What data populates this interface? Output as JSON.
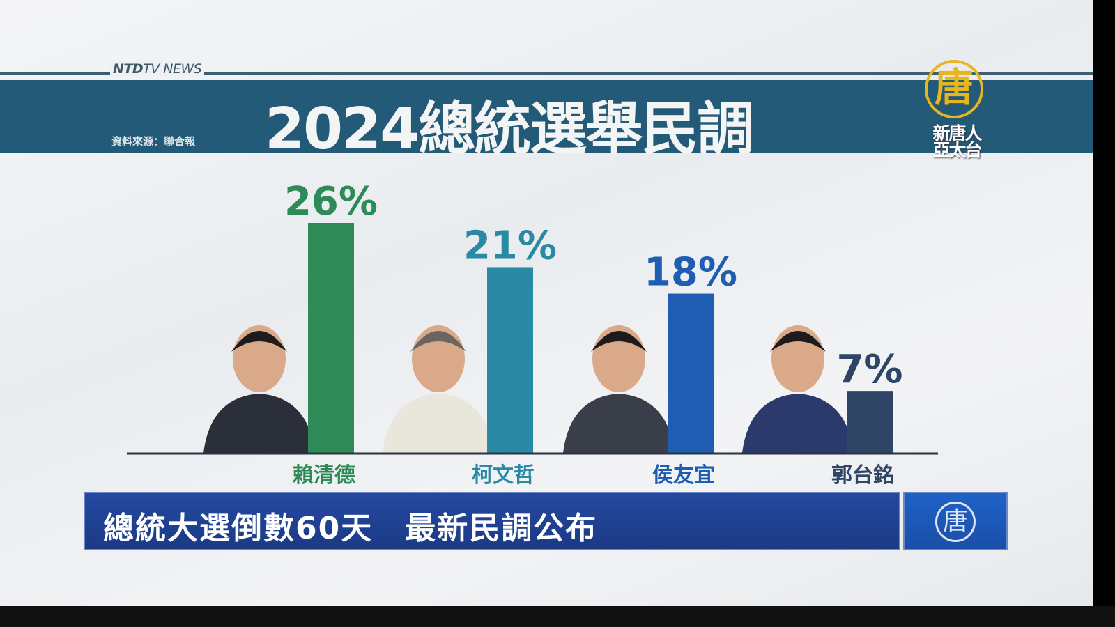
{
  "brand": {
    "bold": "NTD",
    "rest": "TV NEWS"
  },
  "header": {
    "title": "2024總統選舉民調",
    "source": "資料來源：聯合報"
  },
  "logo": {
    "glyph": "唐",
    "line1": "新唐人",
    "line2": "亞太台"
  },
  "lower_third": {
    "text": "總統大選倒數60天　最新民調公布",
    "logo_glyph": "唐"
  },
  "chart_data": {
    "type": "bar",
    "title": "2024總統選舉民調",
    "categories": [
      "賴清德",
      "柯文哲",
      "侯友宜",
      "郭台銘"
    ],
    "values": [
      26,
      21,
      18,
      7
    ],
    "value_labels": [
      "26%",
      "21%",
      "18%",
      "7%"
    ],
    "colors": [
      "#2e8a57",
      "#2a8aa5",
      "#1f5db3",
      "#2e4566"
    ],
    "ylim": [
      0,
      26
    ],
    "grid": false,
    "legend": "none"
  }
}
